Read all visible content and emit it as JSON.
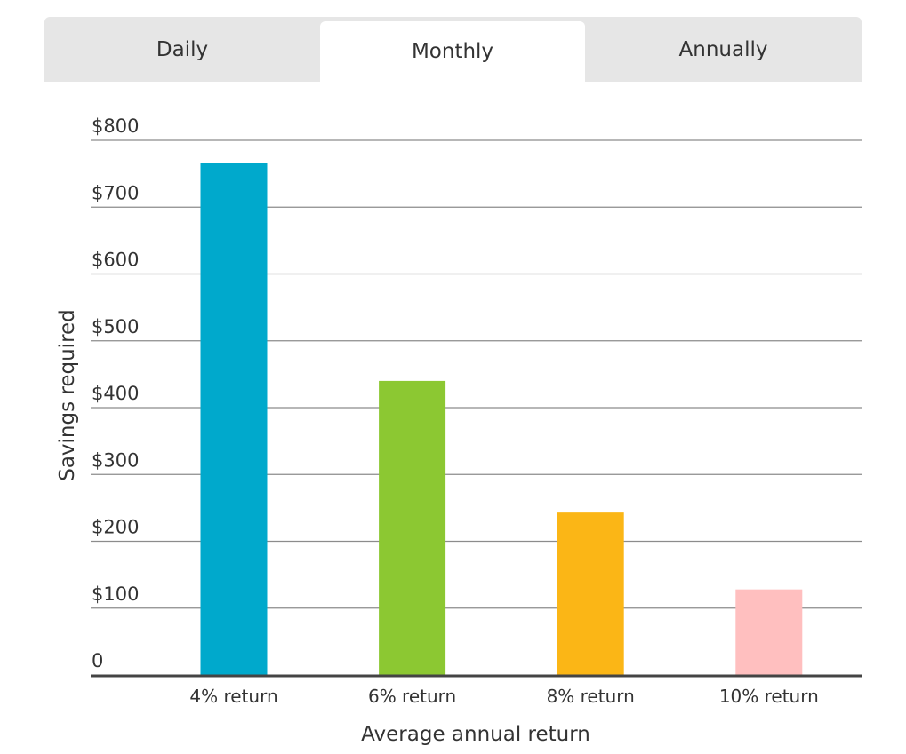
{
  "tabs": [
    {
      "label": "Daily",
      "active": false
    },
    {
      "label": "Monthly",
      "active": true
    },
    {
      "label": "Annually",
      "active": false
    }
  ],
  "chart_data": {
    "type": "bar",
    "categories": [
      "4% return",
      "6% return",
      "8% return",
      "10% return"
    ],
    "values": [
      766,
      440,
      243,
      128
    ],
    "colors": [
      "#00a9cc",
      "#8cc832",
      "#fbb616",
      "#ffbfbf"
    ],
    "xlabel": "Average annual return",
    "ylabel": "Savings required",
    "ylim": [
      0,
      800
    ],
    "yticks": [
      0,
      100,
      200,
      300,
      400,
      500,
      600,
      700,
      800
    ],
    "ytick_labels": [
      "0",
      "$100",
      "$200",
      "$300",
      "$400",
      "$500",
      "$600",
      "$700",
      "$800"
    ],
    "grid": true
  }
}
